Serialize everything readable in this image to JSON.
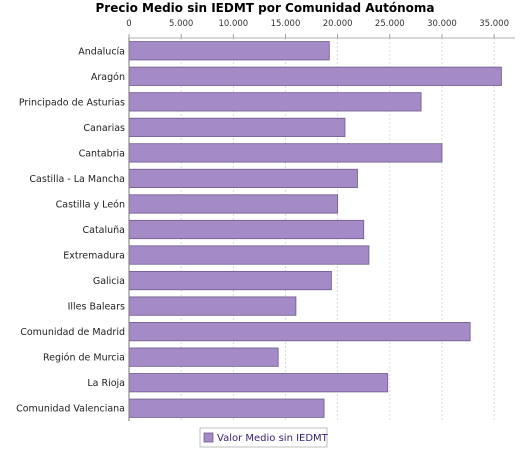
{
  "chart_data": {
    "type": "bar",
    "orientation": "horizontal",
    "title": "Precio Medio sin IEDMT por Comunidad Autónoma",
    "xlabel": "",
    "ylabel": "",
    "xlim": [
      0,
      37000
    ],
    "ticks": [
      0,
      5000,
      10000,
      15000,
      20000,
      25000,
      30000,
      35000
    ],
    "tick_labels": [
      "0",
      "5.000",
      "10.000",
      "15.000",
      "20.000",
      "25.000",
      "30.000",
      "35.000"
    ],
    "tick_axis_position": "top",
    "grid": true,
    "legend_position": "bottom",
    "bar_color": "#a58ac8",
    "bar_border_color": "#6e5a8c",
    "categories": [
      "Andalucía",
      "Aragón",
      "Principado de Asturias",
      "Canarias",
      "Cantabria",
      "Castilla - La Mancha",
      "Castilla y León",
      "Cataluña",
      "Extremadura",
      "Galicia",
      "Illes Balears",
      "Comunidad de Madrid",
      "Región de Murcia",
      "La Rioja",
      "Comunidad Valenciana"
    ],
    "series": [
      {
        "name": "Valor Medio sin IEDMT",
        "values": [
          19200,
          35700,
          28000,
          20700,
          30000,
          21900,
          20000,
          22500,
          23000,
          19400,
          16000,
          32700,
          14300,
          24800,
          18700
        ]
      }
    ]
  }
}
